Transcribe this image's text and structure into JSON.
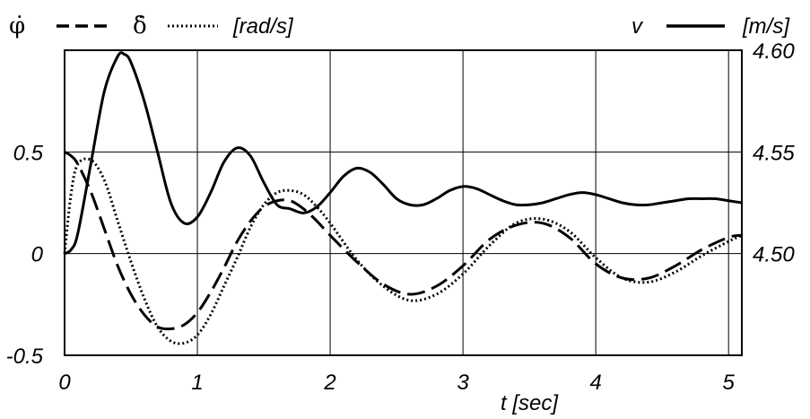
{
  "chart_data": {
    "type": "line",
    "xlabel": "t [sec]",
    "x_ticks": [
      "0",
      "1",
      "2",
      "3",
      "4",
      "5"
    ],
    "xlim": [
      0,
      5.1
    ],
    "left_axis": {
      "unit_label": "[rad/s]",
      "ylim": [
        -0.5,
        1.0
      ],
      "tick_labels": [
        "0.5",
        "0",
        "-0.5"
      ],
      "tick_values": [
        0.5,
        0,
        -0.5
      ]
    },
    "right_axis": {
      "unit_label": "[m/s]",
      "ylim": [
        4.45,
        4.6
      ],
      "tick_labels": [
        "4.60",
        "4.55",
        "4.50"
      ],
      "tick_values": [
        4.6,
        4.55,
        4.5
      ]
    },
    "grid": true,
    "legend": {
      "placement": "top"
    },
    "series": [
      {
        "name": "φ̇",
        "axis": "left",
        "style": "dashed",
        "color": "#000000",
        "x": [
          0,
          0.05,
          0.1,
          0.2,
          0.3,
          0.4,
          0.5,
          0.6,
          0.7,
          0.8,
          0.9,
          1.0,
          1.1,
          1.2,
          1.3,
          1.4,
          1.5,
          1.6,
          1.7,
          1.8,
          1.9,
          2.0,
          2.2,
          2.4,
          2.6,
          2.8,
          3.0,
          3.2,
          3.4,
          3.6,
          3.8,
          4.0,
          4.2,
          4.4,
          4.6,
          4.8,
          5.0,
          5.1
        ],
        "y": [
          0.5,
          0.48,
          0.44,
          0.3,
          0.12,
          -0.06,
          -0.2,
          -0.3,
          -0.36,
          -0.37,
          -0.35,
          -0.29,
          -0.19,
          -0.07,
          0.06,
          0.16,
          0.23,
          0.26,
          0.26,
          0.22,
          0.16,
          0.09,
          -0.04,
          -0.15,
          -0.2,
          -0.16,
          -0.06,
          0.07,
          0.14,
          0.15,
          0.08,
          -0.05,
          -0.12,
          -0.12,
          -0.06,
          0.02,
          0.08,
          0.09
        ]
      },
      {
        "name": "δ̇",
        "axis": "left",
        "style": "dotted",
        "color": "#000000",
        "x": [
          0,
          0.05,
          0.1,
          0.2,
          0.3,
          0.4,
          0.5,
          0.6,
          0.7,
          0.8,
          0.9,
          1.0,
          1.1,
          1.2,
          1.3,
          1.4,
          1.5,
          1.6,
          1.7,
          1.8,
          1.9,
          2.0,
          2.2,
          2.4,
          2.6,
          2.8,
          3.0,
          3.2,
          3.4,
          3.6,
          3.8,
          4.0,
          4.2,
          4.4,
          4.6,
          4.8,
          5.0,
          5.1
        ],
        "y": [
          0.0,
          0.3,
          0.44,
          0.46,
          0.36,
          0.16,
          -0.04,
          -0.22,
          -0.36,
          -0.43,
          -0.44,
          -0.4,
          -0.3,
          -0.16,
          -0.02,
          0.13,
          0.24,
          0.3,
          0.31,
          0.29,
          0.23,
          0.15,
          -0.03,
          -0.16,
          -0.23,
          -0.2,
          -0.1,
          0.04,
          0.15,
          0.17,
          0.11,
          -0.02,
          -0.12,
          -0.14,
          -0.09,
          -0.01,
          0.06,
          0.09
        ]
      },
      {
        "name": "v",
        "axis": "right",
        "style": "solid",
        "color": "#000000",
        "x": [
          0,
          0.05,
          0.1,
          0.2,
          0.3,
          0.4,
          0.45,
          0.5,
          0.6,
          0.7,
          0.8,
          0.9,
          1.0,
          1.1,
          1.2,
          1.3,
          1.4,
          1.5,
          1.6,
          1.7,
          1.8,
          1.9,
          2.0,
          2.1,
          2.2,
          2.3,
          2.4,
          2.5,
          2.6,
          2.7,
          2.8,
          2.9,
          3.0,
          3.1,
          3.2,
          3.3,
          3.4,
          3.5,
          3.6,
          3.7,
          3.8,
          3.9,
          4.0,
          4.1,
          4.2,
          4.3,
          4.4,
          4.5,
          4.6,
          4.7,
          4.8,
          4.9,
          5.0,
          5.1
        ],
        "y": [
          4.5,
          4.502,
          4.51,
          4.545,
          4.58,
          4.597,
          4.598,
          4.594,
          4.575,
          4.55,
          4.525,
          4.515,
          4.518,
          4.53,
          4.545,
          4.552,
          4.548,
          4.535,
          4.524,
          4.522,
          4.52,
          4.523,
          4.53,
          4.538,
          4.542,
          4.54,
          4.534,
          4.527,
          4.524,
          4.524,
          4.527,
          4.531,
          4.533,
          4.532,
          4.529,
          4.526,
          4.524,
          4.524,
          4.525,
          4.527,
          4.529,
          4.53,
          4.529,
          4.527,
          4.525,
          4.524,
          4.524,
          4.525,
          4.526,
          4.527,
          4.527,
          4.527,
          4.526,
          4.525
        ]
      }
    ]
  }
}
